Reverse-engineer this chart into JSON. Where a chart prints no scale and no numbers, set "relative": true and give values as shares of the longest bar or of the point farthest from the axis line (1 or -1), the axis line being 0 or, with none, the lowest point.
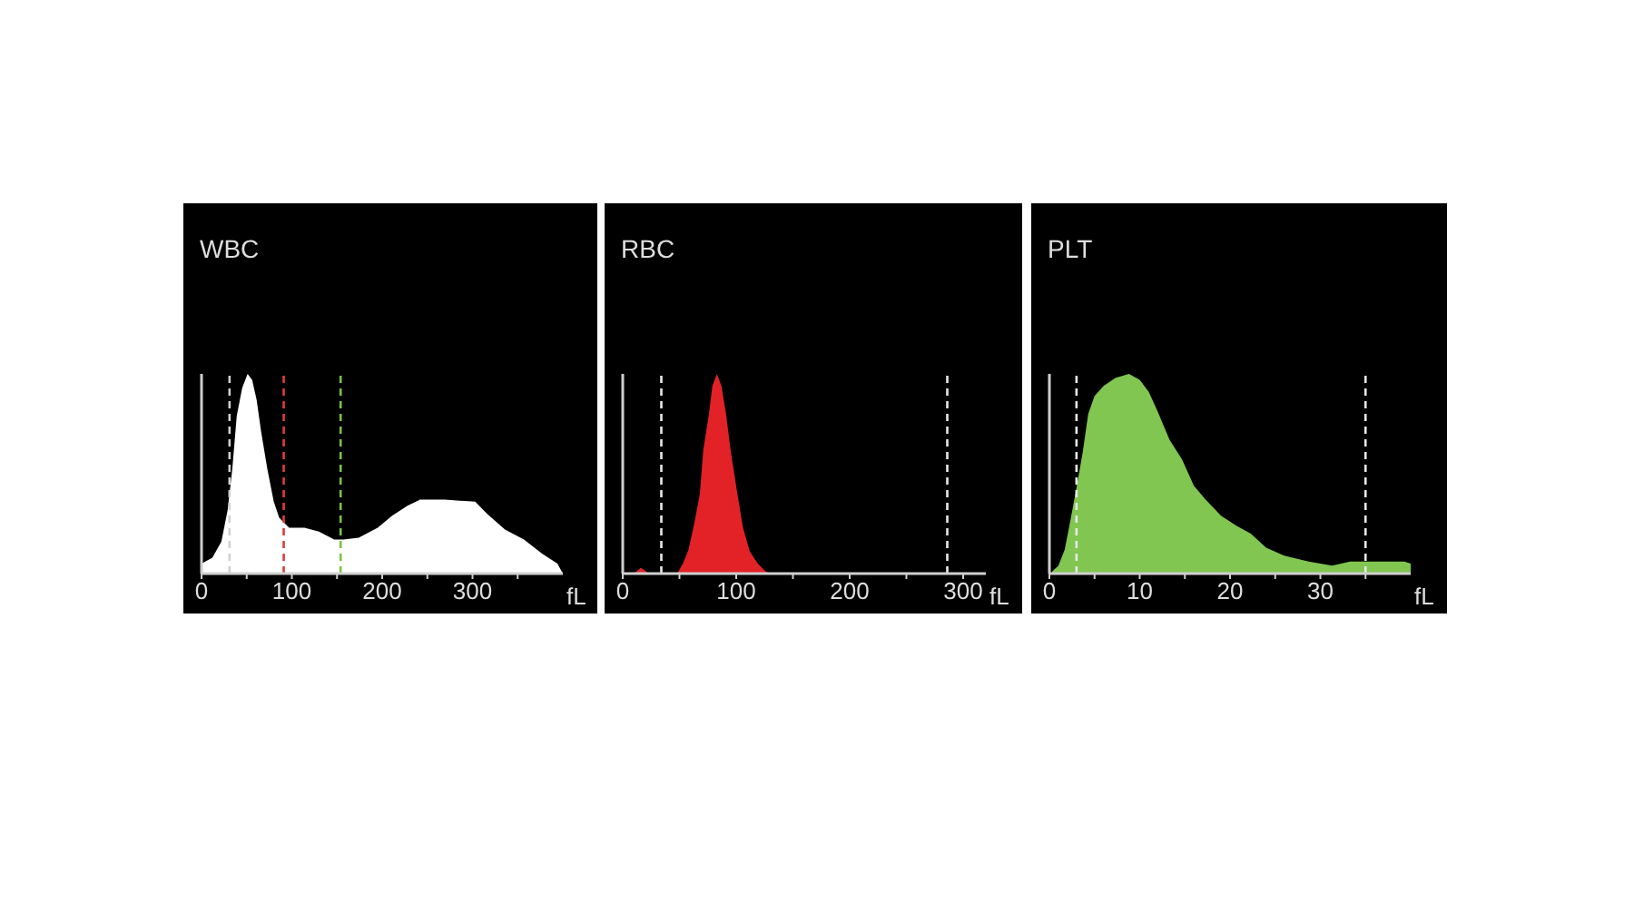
{
  "chart_data": [
    {
      "type": "area",
      "title": "WBC",
      "xlabel": "fL",
      "relative": true,
      "color": "#ffffff",
      "x": [
        0,
        12,
        22,
        29,
        34,
        39,
        45,
        51,
        56,
        61,
        66,
        73,
        80,
        86,
        97,
        114,
        130,
        147,
        157,
        174,
        195,
        211,
        228,
        242,
        269,
        303,
        316,
        336,
        357,
        377,
        394,
        400
      ],
      "values": [
        0.05,
        0.08,
        0.16,
        0.32,
        0.52,
        0.79,
        0.93,
        1,
        0.97,
        0.87,
        0.71,
        0.52,
        0.36,
        0.28,
        0.23,
        0.23,
        0.21,
        0.17,
        0.17,
        0.18,
        0.23,
        0.29,
        0.34,
        0.37,
        0.37,
        0.36,
        0.3,
        0.22,
        0.17,
        0.1,
        0.05,
        0
      ],
      "xlim": [
        0,
        400
      ],
      "xticks": [
        0,
        {
          "value": 50,
          "label": null
        },
        100,
        {
          "value": 150,
          "label": null
        },
        200,
        {
          "value": 250,
          "label": null
        },
        300,
        {
          "value": 350,
          "label": null
        }
      ],
      "ref_lines": [
        {
          "axis": "x",
          "value": 31,
          "color": "#d0d0d0",
          "line_style": "dashed"
        },
        {
          "axis": "x",
          "value": 91,
          "color": "#e03a3a",
          "line_style": "dashed"
        },
        {
          "axis": "x",
          "value": 154,
          "color": "#7cc242",
          "line_style": "dashed"
        }
      ]
    },
    {
      "type": "area",
      "title": "RBC",
      "xlabel": "fL",
      "relative": true,
      "color": "#e32228",
      "x": [
        10,
        16,
        23,
        48,
        53,
        58,
        63,
        68,
        71,
        76,
        79,
        83,
        87,
        91,
        95,
        101,
        106,
        112,
        119,
        126,
        130
      ],
      "values": [
        0,
        0.03,
        0,
        0,
        0.05,
        0.12,
        0.25,
        0.4,
        0.62,
        0.8,
        0.94,
        1,
        0.94,
        0.8,
        0.62,
        0.4,
        0.23,
        0.11,
        0.05,
        0.01,
        0
      ],
      "xlim": [
        0,
        320
      ],
      "xticks": [
        0,
        {
          "value": 50,
          "label": null
        },
        100,
        {
          "value": 150,
          "label": null
        },
        200,
        {
          "value": 250,
          "label": null
        },
        300
      ],
      "ref_lines": [
        {
          "axis": "x",
          "value": 34,
          "color": "#e8e8e8",
          "line_style": "dashed"
        },
        {
          "axis": "x",
          "value": 286,
          "color": "#e8e8e8",
          "line_style": "dashed"
        }
      ]
    },
    {
      "type": "area",
      "title": "PLT",
      "xlabel": "fL",
      "relative": true,
      "color": "#80c650",
      "x": [
        0.3,
        1,
        1.7,
        2.3,
        3,
        3.7,
        4.3,
        5,
        6,
        7.3,
        8.8,
        10,
        11,
        12,
        13.3,
        14.7,
        16,
        17.3,
        19,
        20.7,
        22.3,
        24,
        26,
        28.7,
        31.3,
        33.3,
        34.7,
        37.3,
        39.3,
        40
      ],
      "values": [
        0.01,
        0.04,
        0.12,
        0.26,
        0.43,
        0.61,
        0.8,
        0.89,
        0.94,
        0.98,
        1,
        0.97,
        0.91,
        0.81,
        0.67,
        0.57,
        0.44,
        0.37,
        0.29,
        0.24,
        0.2,
        0.13,
        0.09,
        0.06,
        0.04,
        0.06,
        0.06,
        0.06,
        0.06,
        0.05
      ],
      "xlim": [
        0,
        40
      ],
      "xticks": [
        0,
        {
          "value": 5,
          "label": null
        },
        10,
        {
          "value": 15,
          "label": null
        },
        20,
        {
          "value": 25,
          "label": null
        },
        30,
        {
          "value": 35,
          "label": null
        }
      ],
      "ref_lines": [
        {
          "axis": "x",
          "value": 3,
          "color": "#e8e8e8",
          "line_style": "dashed"
        },
        {
          "axis": "x",
          "value": 35,
          "color": "#e8e8e8",
          "line_style": "dashed"
        }
      ]
    }
  ]
}
